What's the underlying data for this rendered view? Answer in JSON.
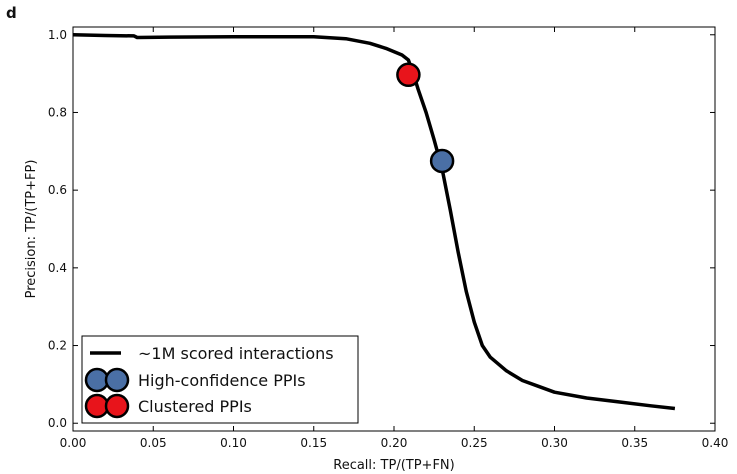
{
  "chart_data": {
    "type": "line",
    "panel_label": "d",
    "title": "",
    "xlabel": "Recall: TP/(TP+FN)",
    "ylabel": "Precision: TP/(TP+FP)",
    "xlim": [
      0.0,
      0.4
    ],
    "ylim": [
      -0.02,
      1.02
    ],
    "xticks": [
      "0.00",
      "0.05",
      "0.10",
      "0.15",
      "0.20",
      "0.25",
      "0.30",
      "0.35",
      "0.40"
    ],
    "yticks": [
      "0.0",
      "0.2",
      "0.4",
      "0.6",
      "0.8",
      "1.0"
    ],
    "grid": false,
    "legend": {
      "placement": "lower-left",
      "entries": [
        {
          "label": "~1M scored interactions",
          "marker": "line",
          "color": "#000000"
        },
        {
          "label": "High-confidence PPIs",
          "marker": "circle",
          "color": "#4a6fa5"
        },
        {
          "label": "Clustered PPIs",
          "marker": "circle",
          "color": "#e8141b"
        }
      ]
    },
    "series": [
      {
        "kind": "line",
        "color": "#000000",
        "x": [
          0.0,
          0.02,
          0.038,
          0.04,
          0.06,
          0.1,
          0.15,
          0.17,
          0.185,
          0.195,
          0.205,
          0.209,
          0.212,
          0.215,
          0.22,
          0.225,
          0.23,
          0.235,
          0.24,
          0.245,
          0.25,
          0.255,
          0.26,
          0.27,
          0.28,
          0.29,
          0.3,
          0.32,
          0.34,
          0.36,
          0.375
        ],
        "y": [
          1.0,
          0.998,
          0.997,
          0.993,
          0.994,
          0.995,
          0.995,
          0.99,
          0.978,
          0.965,
          0.948,
          0.935,
          0.9,
          0.86,
          0.8,
          0.73,
          0.655,
          0.55,
          0.44,
          0.34,
          0.26,
          0.2,
          0.17,
          0.135,
          0.11,
          0.095,
          0.08,
          0.065,
          0.055,
          0.045,
          0.038
        ]
      },
      {
        "kind": "point",
        "color": "#4a6fa5",
        "x": [
          0.23
        ],
        "y": [
          0.675
        ]
      },
      {
        "kind": "point",
        "color": "#e8141b",
        "x": [
          0.209
        ],
        "y": [
          0.897
        ]
      }
    ]
  }
}
